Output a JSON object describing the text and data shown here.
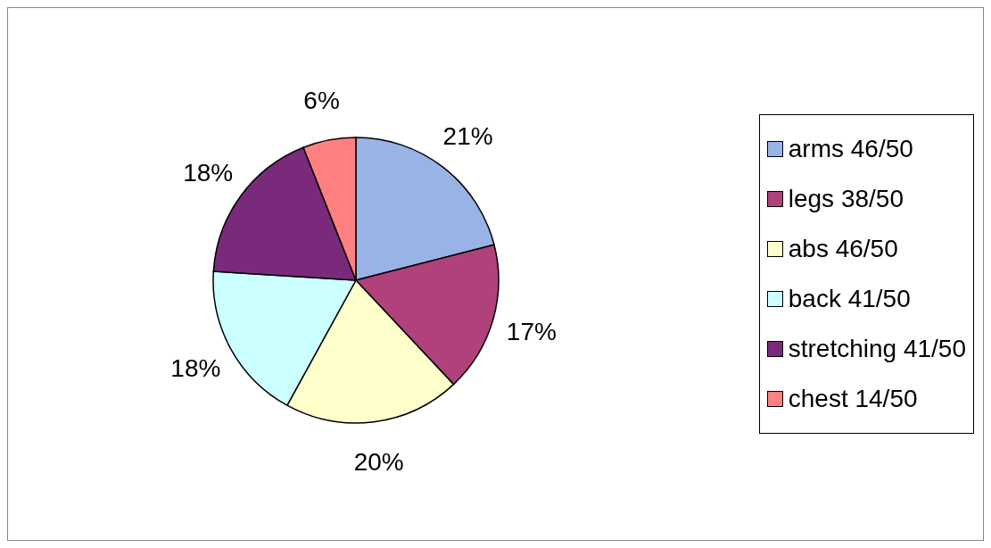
{
  "chart_data": {
    "type": "pie",
    "categories": [
      "arms 46/50",
      "legs 38/50",
      "abs 46/50",
      "back 41/50",
      "stretching 41/50",
      "chest 14/50"
    ],
    "values": [
      21,
      17,
      20,
      18,
      18,
      6
    ],
    "value_labels": [
      "21%",
      "17%",
      "20%",
      "18%",
      "18%",
      "6%"
    ],
    "colors": [
      "#99b3e6",
      "#b0417a",
      "#ffffcc",
      "#ccffff",
      "#7a2a7a",
      "#ff8080"
    ],
    "legend": "right"
  }
}
